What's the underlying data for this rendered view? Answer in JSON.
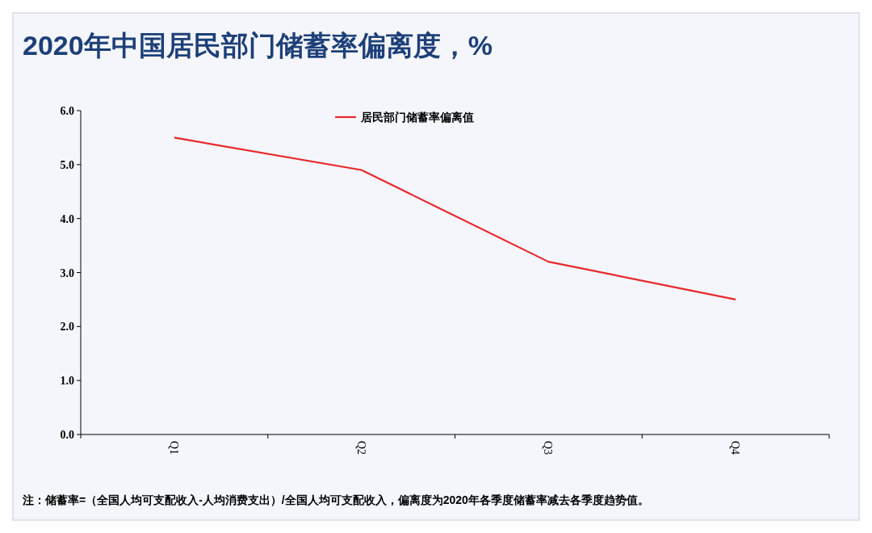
{
  "chart_data": {
    "type": "line",
    "title": "2020年中国居民部门储蓄率偏离度，%",
    "categories": [
      "Q1",
      "Q2",
      "Q3",
      "Q4"
    ],
    "series": [
      {
        "name": "居民部门储蓄率偏离值",
        "color": "#e8282b",
        "values": [
          5.5,
          4.9,
          3.2,
          2.5
        ]
      }
    ],
    "ylim": [
      0,
      6
    ],
    "yticks": [
      {
        "value": 0,
        "label": "0.0"
      },
      {
        "value": 1,
        "label": "1.0"
      },
      {
        "value": 2,
        "label": "2.0"
      },
      {
        "value": 3,
        "label": "3.0"
      },
      {
        "value": 4,
        "label": "4.0"
      },
      {
        "value": 5,
        "label": "5.0"
      },
      {
        "value": 6,
        "label": "6.0"
      }
    ],
    "legend": "top",
    "grid": false,
    "marker": "none",
    "line_style": "solid",
    "annotations": [
      "注：储蓄率=（全国人均可支配收入-人均消费支出）/全国人均可支配收入，偏离度为2020年各季度储蓄率减去各季度趋势值。"
    ]
  }
}
